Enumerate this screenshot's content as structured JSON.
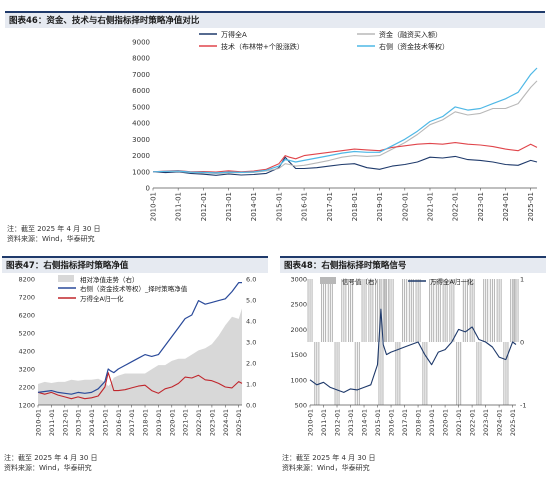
{
  "top_panel": {
    "title": "图表46：资金、技术与右侧指标择时策略净值对比",
    "note": "注：截至 2025 年 4 月 30 日",
    "source": "资料来源：Wind，华泰研究"
  },
  "left_panel": {
    "title": "图表47：右侧指标择时策略净值",
    "note": "注：截至 2025 年 4 月 30 日",
    "source": "资料来源：Wind，华泰研究"
  },
  "right_panel": {
    "title": "图表48：右侧指标择时策略信号",
    "note": "注：截至 2025 年 4 月 30 日",
    "source": "资料来源：Wind，华泰研究"
  },
  "colors": {
    "navy": "#1f3a6b",
    "grey": "#b8b8b8",
    "light_grey": "#d8d8d8",
    "red": "#e0454b",
    "cyan": "#4fb8e6",
    "dark_red": "#c0262c",
    "blue": "#2a4a9a"
  },
  "chart_data": [
    {
      "id": "top",
      "type": "line",
      "x": [
        "2010-01",
        "2010-07",
        "2011-01",
        "2011-07",
        "2012-01",
        "2012-07",
        "2013-01",
        "2013-07",
        "2014-01",
        "2014-07",
        "2015-01",
        "2015-04",
        "2015-06",
        "2015-09",
        "2016-01",
        "2016-07",
        "2017-01",
        "2017-07",
        "2018-01",
        "2018-07",
        "2019-01",
        "2019-07",
        "2020-01",
        "2020-07",
        "2021-01",
        "2021-07",
        "2022-01",
        "2022-07",
        "2023-01",
        "2023-07",
        "2024-01",
        "2024-07",
        "2025-01",
        "2025-04"
      ],
      "xticks": [
        "2010-01",
        "2011-01",
        "2012-01",
        "2013-01",
        "2014-01",
        "2015-01",
        "2016-01",
        "2017-01",
        "2018-01",
        "2019-01",
        "2020-01",
        "2021-01",
        "2022-01",
        "2023-01",
        "2024-01",
        "2025-01"
      ],
      "ylim": [
        0,
        9000
      ],
      "yticks": [
        0,
        1000,
        2000,
        3000,
        4000,
        5000,
        6000,
        7000,
        8000,
        9000
      ],
      "legend_position": "top",
      "series": [
        {
          "name": "万得全A",
          "color_key": "navy",
          "width": 1.1,
          "values": [
            1000,
            950,
            1000,
            900,
            850,
            780,
            860,
            800,
            830,
            900,
            1250,
            1900,
            1600,
            1200,
            1200,
            1250,
            1350,
            1450,
            1500,
            1250,
            1150,
            1350,
            1450,
            1600,
            1900,
            1850,
            1950,
            1750,
            1700,
            1600,
            1450,
            1400,
            1700,
            1600
          ]
        },
        {
          "name": "资金（融资买入额）",
          "color_key": "grey",
          "width": 1.1,
          "values": [
            1000,
            1020,
            1020,
            960,
            930,
            900,
            920,
            950,
            960,
            1050,
            1200,
            1500,
            1450,
            1350,
            1400,
            1550,
            1700,
            1900,
            2000,
            1950,
            2000,
            2400,
            2800,
            3300,
            3900,
            4200,
            4700,
            4500,
            4600,
            4900,
            4900,
            5200,
            6200,
            6600
          ]
        },
        {
          "name": "技术（布林带+个股涨跌）",
          "color_key": "red",
          "width": 1.1,
          "values": [
            1000,
            1050,
            1080,
            1000,
            1020,
            980,
            1060,
            1000,
            1050,
            1150,
            1500,
            2000,
            1900,
            1800,
            2000,
            2100,
            2200,
            2300,
            2400,
            2350,
            2300,
            2500,
            2600,
            2700,
            2750,
            2700,
            2800,
            2700,
            2650,
            2550,
            2400,
            2300,
            2700,
            2500
          ]
        },
        {
          "name": "右侧（资金技术等权）",
          "color_key": "cyan",
          "width": 1.2,
          "values": [
            1000,
            1030,
            1050,
            980,
            960,
            930,
            980,
            960,
            990,
            1100,
            1350,
            1750,
            1700,
            1600,
            1700,
            1850,
            2000,
            2150,
            2250,
            2200,
            2200,
            2600,
            3000,
            3500,
            4100,
            4400,
            5000,
            4800,
            4900,
            5200,
            5500,
            5900,
            7000,
            7400
          ]
        }
      ]
    },
    {
      "id": "left",
      "type": "line",
      "x": [
        "2010-01",
        "2010-07",
        "2011-01",
        "2011-07",
        "2012-01",
        "2012-07",
        "2013-01",
        "2013-07",
        "2014-01",
        "2014-07",
        "2015-01",
        "2015-04",
        "2015-06",
        "2015-09",
        "2016-01",
        "2016-07",
        "2017-01",
        "2017-07",
        "2018-01",
        "2018-07",
        "2019-01",
        "2019-07",
        "2020-01",
        "2020-07",
        "2021-01",
        "2021-07",
        "2022-01",
        "2022-07",
        "2023-01",
        "2023-07",
        "2024-01",
        "2024-07",
        "2025-01",
        "2025-04"
      ],
      "xticks": [
        "2010-01",
        "2011-01",
        "2012-01",
        "2013-01",
        "2014-01",
        "2015-01",
        "2016-01",
        "2017-01",
        "2018-01",
        "2019-01",
        "2020-01",
        "2021-01",
        "2022-01",
        "2023-01",
        "2024-01",
        "2025-01"
      ],
      "ylim": [
        1200,
        8200
      ],
      "yticks": [
        1200,
        2200,
        3200,
        4200,
        5200,
        6200,
        7200,
        8200
      ],
      "y2lim": [
        0,
        6
      ],
      "y2ticks": [
        "0.0",
        "1.0",
        "2.0",
        "3.0",
        "4.0",
        "5.0",
        "6.0"
      ],
      "legend_position": "top-left",
      "series": [
        {
          "name": "相对净值走势（右）",
          "axis": "right",
          "kind": "area",
          "color_key": "light_grey",
          "values": [
            1.0,
            1.1,
            1.05,
            1.1,
            1.1,
            1.2,
            1.15,
            1.2,
            1.2,
            1.25,
            1.1,
            0.9,
            1.0,
            1.3,
            1.4,
            1.5,
            1.5,
            1.5,
            1.5,
            1.7,
            1.9,
            1.9,
            2.1,
            2.2,
            2.2,
            2.4,
            2.6,
            2.7,
            2.9,
            3.3,
            3.8,
            4.2,
            4.1,
            4.6
          ]
        },
        {
          "name": "万得全A归一化",
          "axis": "left",
          "color_key": "dark_red",
          "width": 1.1,
          "values": [
            1900,
            1800,
            1900,
            1750,
            1650,
            1550,
            1650,
            1550,
            1600,
            1700,
            2200,
            3000,
            2600,
            2000,
            2000,
            2050,
            2150,
            2250,
            2300,
            2000,
            1850,
            2100,
            2200,
            2400,
            2750,
            2700,
            2850,
            2600,
            2550,
            2400,
            2200,
            2150,
            2500,
            2400
          ]
        },
        {
          "name": "右侧（资金技术等权）_择时策略净值",
          "axis": "left",
          "color_key": "blue",
          "width": 1.2,
          "values": [
            1900,
            1950,
            2000,
            1900,
            1850,
            1800,
            1900,
            1850,
            1900,
            2100,
            2500,
            3200,
            3100,
            3000,
            3200,
            3400,
            3600,
            3800,
            4000,
            3900,
            4000,
            4500,
            5000,
            5500,
            6000,
            6200,
            7000,
            6800,
            6900,
            7000,
            7100,
            7500,
            8000,
            8000
          ]
        }
      ]
    },
    {
      "id": "right",
      "type": "line",
      "x": [
        "2010-01",
        "2010-07",
        "2011-01",
        "2011-07",
        "2012-01",
        "2012-07",
        "2013-01",
        "2013-07",
        "2014-01",
        "2014-07",
        "2015-01",
        "2015-04",
        "2015-06",
        "2015-09",
        "2016-01",
        "2016-07",
        "2017-01",
        "2017-07",
        "2018-01",
        "2018-07",
        "2019-01",
        "2019-07",
        "2020-01",
        "2020-07",
        "2021-01",
        "2021-07",
        "2022-01",
        "2022-07",
        "2023-01",
        "2023-07",
        "2024-01",
        "2024-07",
        "2025-01",
        "2025-04"
      ],
      "xticks": [
        "2010-01",
        "2011-01",
        "2012-01",
        "2013-01",
        "2014-01",
        "2015-01",
        "2016-01",
        "2017-01",
        "2018-01",
        "2019-01",
        "2020-01",
        "2021-01",
        "2022-01",
        "2023-01",
        "2024-01",
        "2025-01"
      ],
      "ylim": [
        500,
        3000
      ],
      "yticks": [
        500,
        1000,
        1500,
        2000,
        2500,
        3000
      ],
      "y2lim": [
        -1,
        1
      ],
      "y2ticks": [
        "-1",
        "0",
        "1"
      ],
      "legend_position": "top",
      "series": [
        {
          "name": "信号值（右）",
          "axis": "right",
          "kind": "signal_bars",
          "color_key": "grey",
          "values": [
            1,
            -1,
            1,
            1,
            -1,
            1,
            1,
            -1,
            1,
            1,
            1,
            -1,
            1,
            1,
            1,
            -1,
            1,
            1,
            1,
            -1,
            1,
            1,
            1,
            1,
            -1,
            1,
            1,
            -1,
            1,
            1,
            1,
            -1,
            1,
            1
          ]
        },
        {
          "name": "万得全A归一化",
          "axis": "left",
          "color_key": "navy",
          "width": 1.1,
          "values": [
            1000,
            900,
            950,
            850,
            800,
            750,
            820,
            800,
            850,
            900,
            1300,
            2400,
            1700,
            1500,
            1550,
            1600,
            1650,
            1700,
            1750,
            1500,
            1300,
            1550,
            1600,
            1750,
            2000,
            1950,
            2050,
            1800,
            1750,
            1650,
            1450,
            1400,
            1750,
            1700
          ]
        }
      ]
    }
  ]
}
